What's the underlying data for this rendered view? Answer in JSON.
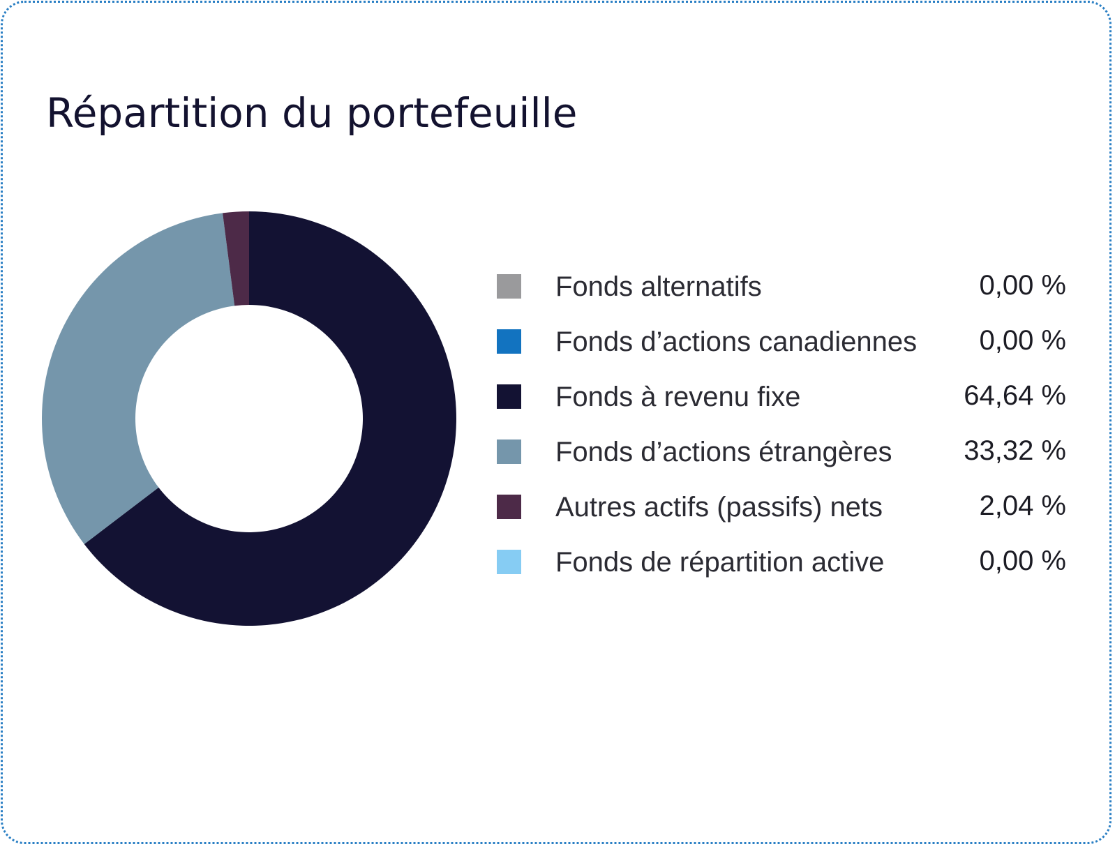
{
  "chart_data": {
    "type": "pie",
    "title": "Répartition du portefeuille",
    "legend_position": "right",
    "slices": [
      {
        "label": "Fonds alternatifs",
        "value": 0.0,
        "display": "0,00 %",
        "color": "#9a9a9c"
      },
      {
        "label": "Fonds d’actions canadiennes",
        "value": 0.0,
        "display": "0,00 %",
        "color": "#1273c0"
      },
      {
        "label": "Fonds à revenu fixe",
        "value": 64.64,
        "display": "64,64 %",
        "color": "#131233"
      },
      {
        "label": "Fonds d’actions étrangères",
        "value": 33.32,
        "display": "33,32 %",
        "color": "#7596ab"
      },
      {
        "label": "Autres actifs (passifs) nets",
        "value": 2.04,
        "display": "2,04 %",
        "color": "#4d2a48"
      },
      {
        "label": "Fonds de répartition active",
        "value": 0.0,
        "display": "0,00 %",
        "color": "#86ccf3"
      }
    ]
  }
}
